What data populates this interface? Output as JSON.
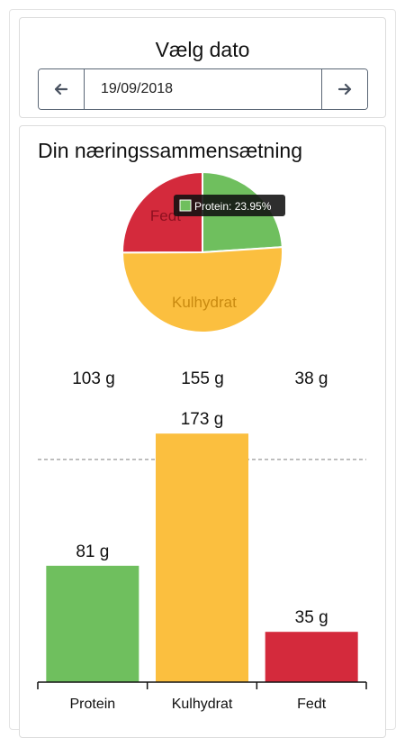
{
  "date_picker": {
    "title": "Vælg dato",
    "value": "19/09/2018",
    "prev_icon": "arrow-left-icon",
    "next_icon": "arrow-right-icon"
  },
  "nutrition": {
    "title": "Din næringssammensætning",
    "pie": {
      "tooltip": "Protein: 23.95%",
      "slices": [
        {
          "label": "Protein",
          "percent": 23.95,
          "color": "#6fbf5e"
        },
        {
          "label": "Kulhydrat",
          "percent": 51.0,
          "color": "#fbbf3f"
        },
        {
          "label": "Fedt",
          "percent": 25.05,
          "color": "#d42a3c"
        }
      ]
    },
    "targets": [
      "103 g",
      "155 g",
      "38 g"
    ],
    "bars": {
      "categories": [
        "Protein",
        "Kulhydrat",
        "Fedt"
      ],
      "values": [
        81,
        173,
        35
      ],
      "value_labels": [
        "81 g",
        "173 g",
        "35 g"
      ],
      "colors": [
        "#6fbf5e",
        "#fbbf3f",
        "#d42a3c"
      ]
    }
  },
  "chart_data": {
    "type": "bar",
    "categories": [
      "Protein",
      "Kulhydrat",
      "Fedt"
    ],
    "values": [
      81,
      173,
      35
    ],
    "title": "",
    "xlabel": "",
    "ylabel": ""
  }
}
